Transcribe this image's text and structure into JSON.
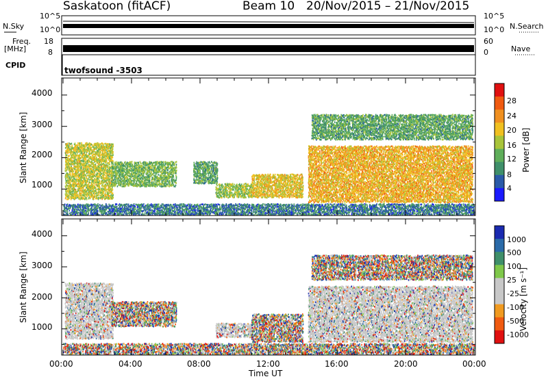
{
  "header": {
    "station": "Saskatoon (fitACF)",
    "beam": "Beam 10",
    "daterange": "20/Nov/2015 – 21/Nov/2015"
  },
  "strip": {
    "nsky_label": "N.Sky",
    "nsearch_label": "N.Search",
    "nsky_ticks": [
      "10^5",
      "10^0"
    ],
    "nsearch_ticks": [
      "10^5",
      "10^0"
    ],
    "freq_label_1": "Freq.",
    "freq_label_2": "[MHz]",
    "freq_ticks": [
      "18",
      "8"
    ],
    "nave_label": "Nave",
    "nave_ticks": [
      "60",
      "0"
    ],
    "cpid_label": "CPID",
    "cpid_value": "twofsound  -3503"
  },
  "colors": {
    "power": [
      "#1a1aff",
      "#2a5aa8",
      "#3f8f6a",
      "#5fae5a",
      "#a8c43a",
      "#f0c020",
      "#f09020",
      "#f05a10",
      "#e01010"
    ],
    "velocity": [
      "#e01010",
      "#f05a10",
      "#f09a20",
      "#c8c8c8",
      "#c8c8c8",
      "#7fc84a",
      "#3f8f6a",
      "#2a6aa8",
      "#1a2ab0"
    ]
  },
  "chart_data": [
    {
      "type": "heatmap",
      "panel": "power",
      "ylabel": "Slant Range [km]",
      "yticks": [
        "1000",
        "2000",
        "3000",
        "4000"
      ],
      "ylim": [
        200,
        4500
      ],
      "colorbar_label": "Power [dB]",
      "colorbar_ticks": [
        "4",
        "8",
        "12",
        "16",
        "20",
        "24",
        "28"
      ],
      "colorbar_range": [
        0,
        30
      ],
      "scatter_regions": [
        {
          "t0": 0.1,
          "t1": 2.9,
          "r0": 700,
          "r1": 2500,
          "level": 16
        },
        {
          "t0": 2.8,
          "t1": 6.6,
          "r0": 1100,
          "r1": 1900,
          "level": 12
        },
        {
          "t0": 7.6,
          "t1": 9.0,
          "r0": 1200,
          "r1": 1900,
          "level": 10
        },
        {
          "t0": 8.9,
          "t1": 11.0,
          "r0": 750,
          "r1": 1200,
          "level": 14
        },
        {
          "t0": 11.0,
          "t1": 14.0,
          "r0": 750,
          "r1": 1500,
          "level": 18
        },
        {
          "t0": 14.3,
          "t1": 23.9,
          "r0": 600,
          "r1": 2400,
          "level": 20
        },
        {
          "t0": 14.5,
          "t1": 23.9,
          "r0": 2600,
          "r1": 3400,
          "level": 10
        },
        {
          "t0": 0.0,
          "t1": 24.0,
          "r0": 200,
          "r1": 550,
          "level": 6
        }
      ]
    },
    {
      "type": "heatmap",
      "panel": "velocity",
      "ylabel": "Slant Range [km]",
      "yticks": [
        "1000",
        "2000",
        "3000",
        "4000"
      ],
      "ylim": [
        200,
        4500
      ],
      "xlabel": "Time UT",
      "xticks": [
        "00:00",
        "04:00",
        "08:00",
        "12:00",
        "16:00",
        "20:00",
        "00:00"
      ],
      "xlim": [
        0,
        24
      ],
      "colorbar_label": "Velocity [m s⁻¹]",
      "colorbar_ticks": [
        "1000",
        "500",
        "100",
        "25",
        "-25",
        "-100",
        "-500",
        "-1000"
      ],
      "scatter_regions": [
        {
          "t0": 0.1,
          "t1": 2.9,
          "r0": 700,
          "r1": 2500,
          "level": 25
        },
        {
          "t0": 2.8,
          "t1": 6.6,
          "r0": 1100,
          "r1": 1900,
          "level": -100
        },
        {
          "t0": 8.9,
          "t1": 11.0,
          "r0": 750,
          "r1": 1200,
          "level": 0
        },
        {
          "t0": 11.0,
          "t1": 14.0,
          "r0": 600,
          "r1": 1500,
          "level": -100
        },
        {
          "t0": 14.3,
          "t1": 23.9,
          "r0": 600,
          "r1": 2400,
          "level": 0
        },
        {
          "t0": 14.5,
          "t1": 23.9,
          "r0": 2600,
          "r1": 3400,
          "level": 100
        },
        {
          "t0": 0.0,
          "t1": 24.0,
          "r0": 200,
          "r1": 550,
          "level": -50
        }
      ]
    }
  ]
}
